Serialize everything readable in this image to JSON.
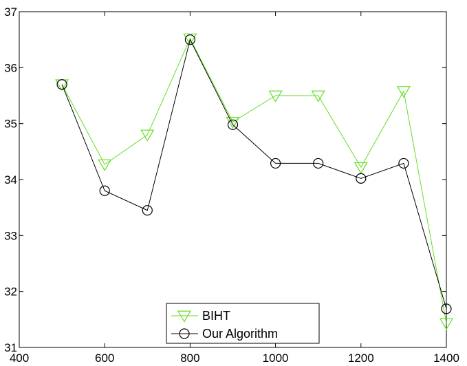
{
  "chart_data": {
    "type": "line",
    "title": "",
    "xlabel": "",
    "ylabel": "",
    "xlim": [
      400,
      1400
    ],
    "ylim": [
      31,
      37
    ],
    "xticks": [
      400,
      600,
      800,
      1000,
      1200,
      1400
    ],
    "yticks": [
      31,
      32,
      33,
      34,
      35,
      36,
      37
    ],
    "grid": false,
    "legend_position": "bottom-center",
    "x": [
      500,
      600,
      700,
      800,
      900,
      1000,
      1100,
      1200,
      1300,
      1400
    ],
    "series": [
      {
        "name": "BIHT",
        "color": "#66dd22",
        "marker": "triangle-down",
        "values": [
          35.7,
          34.27,
          34.8,
          36.52,
          35.03,
          35.5,
          35.5,
          34.22,
          35.58,
          31.43
        ]
      },
      {
        "name": "Our Algorithm",
        "color": "#000000",
        "marker": "circle",
        "values": [
          35.7,
          33.8,
          33.45,
          36.5,
          34.98,
          34.29,
          34.29,
          34.02,
          34.29,
          31.69
        ]
      }
    ]
  }
}
